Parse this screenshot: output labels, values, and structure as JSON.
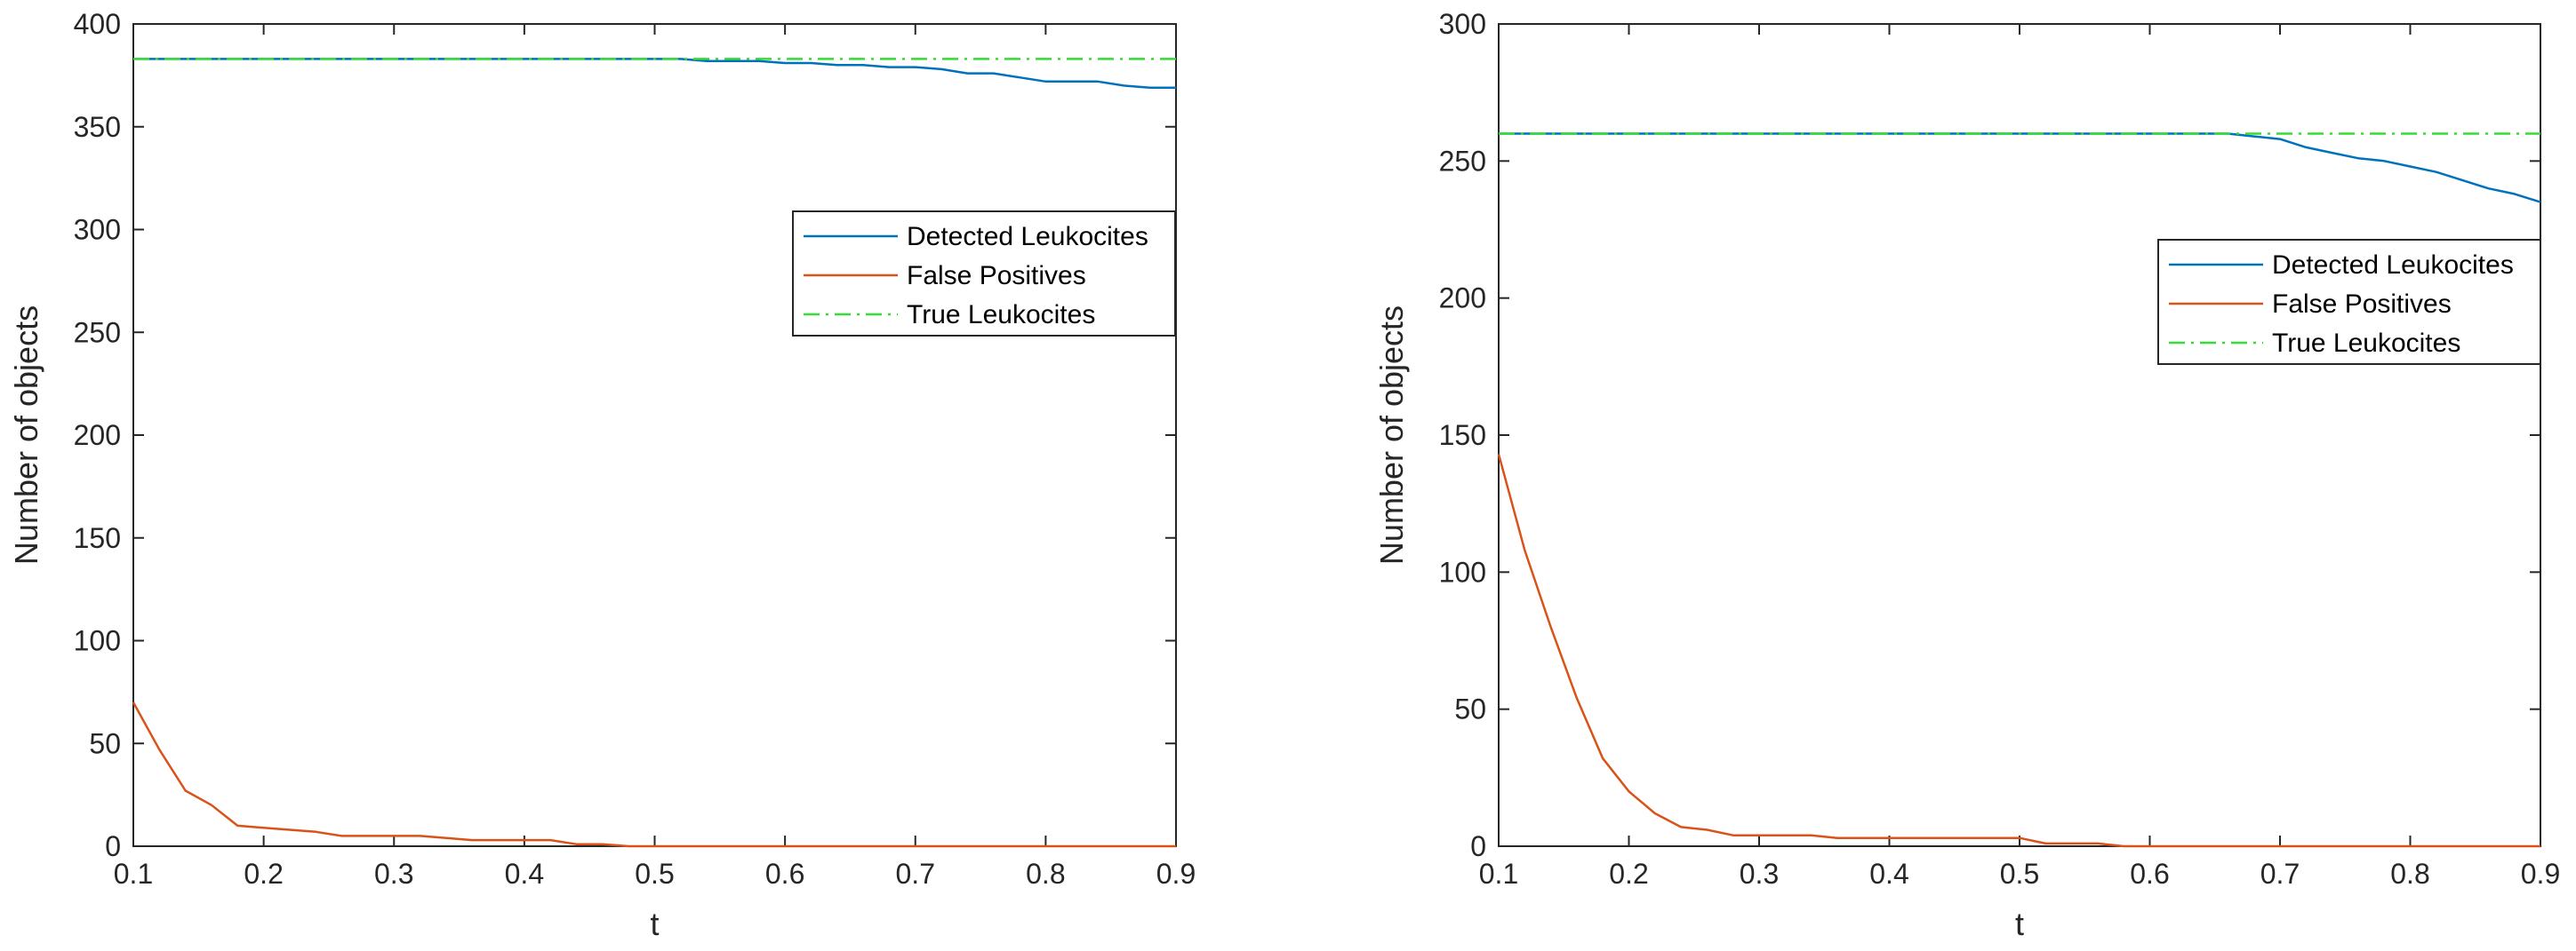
{
  "chart_data": [
    {
      "type": "line",
      "title": "",
      "xlabel": "t",
      "ylabel": "Number of objects",
      "xlim": [
        0.1,
        0.9
      ],
      "ylim": [
        0,
        400
      ],
      "xticks": [
        0.1,
        0.2,
        0.3,
        0.4,
        0.5,
        0.6,
        0.7,
        0.8,
        0.9
      ],
      "yticks": [
        0,
        50,
        100,
        150,
        200,
        250,
        300,
        350,
        400
      ],
      "xtick_labels": [
        "0.1",
        "0.2",
        "0.3",
        "0.4",
        "0.5",
        "0.6",
        "0.7",
        "0.8",
        "0.9"
      ],
      "ytick_labels": [
        "0",
        "50",
        "100",
        "150",
        "200",
        "250",
        "300",
        "350",
        "400"
      ],
      "legend_position": "upper-right",
      "x": [
        0.1,
        0.12,
        0.14,
        0.16,
        0.18,
        0.2,
        0.22,
        0.24,
        0.26,
        0.28,
        0.3,
        0.32,
        0.34,
        0.36,
        0.38,
        0.4,
        0.42,
        0.44,
        0.46,
        0.48,
        0.5,
        0.52,
        0.54,
        0.56,
        0.58,
        0.6,
        0.62,
        0.64,
        0.66,
        0.68,
        0.7,
        0.72,
        0.74,
        0.76,
        0.78,
        0.8,
        0.82,
        0.84,
        0.86,
        0.88,
        0.9
      ],
      "series": [
        {
          "name": "Detected Leukocites",
          "color": "#0072BD",
          "style": "solid",
          "values": [
            383,
            383,
            383,
            383,
            383,
            383,
            383,
            383,
            383,
            383,
            383,
            383,
            383,
            383,
            383,
            383,
            383,
            383,
            383,
            383,
            383,
            383,
            382,
            382,
            382,
            381,
            381,
            380,
            380,
            379,
            379,
            378,
            376,
            376,
            374,
            372,
            372,
            372,
            370,
            369,
            369
          ]
        },
        {
          "name": "False Positives",
          "color": "#D95319",
          "style": "solid",
          "values": [
            70,
            47,
            27,
            20,
            10,
            9,
            8,
            7,
            5,
            5,
            5,
            5,
            4,
            3,
            3,
            3,
            3,
            1,
            1,
            0,
            0,
            0,
            0,
            0,
            0,
            0,
            0,
            0,
            0,
            0,
            0,
            0,
            0,
            0,
            0,
            0,
            0,
            0,
            0,
            0,
            0
          ]
        },
        {
          "name": "True Leukocites",
          "color": "#33DD33",
          "style": "dashdot",
          "values": [
            383,
            383,
            383,
            383,
            383,
            383,
            383,
            383,
            383,
            383,
            383,
            383,
            383,
            383,
            383,
            383,
            383,
            383,
            383,
            383,
            383,
            383,
            383,
            383,
            383,
            383,
            383,
            383,
            383,
            383,
            383,
            383,
            383,
            383,
            383,
            383,
            383,
            383,
            383,
            383,
            383
          ]
        }
      ]
    },
    {
      "type": "line",
      "title": "",
      "xlabel": "t",
      "ylabel": "Number of objects",
      "xlim": [
        0.1,
        0.9
      ],
      "ylim": [
        0,
        300
      ],
      "xticks": [
        0.1,
        0.2,
        0.3,
        0.4,
        0.5,
        0.6,
        0.7,
        0.8,
        0.9
      ],
      "yticks": [
        0,
        50,
        100,
        150,
        200,
        250,
        300
      ],
      "xtick_labels": [
        "0.1",
        "0.2",
        "0.3",
        "0.4",
        "0.5",
        "0.6",
        "0.7",
        "0.8",
        "0.9"
      ],
      "ytick_labels": [
        "0",
        "50",
        "100",
        "150",
        "200",
        "250",
        "300"
      ],
      "legend_position": "upper-right",
      "x": [
        0.1,
        0.12,
        0.14,
        0.16,
        0.18,
        0.2,
        0.22,
        0.24,
        0.26,
        0.28,
        0.3,
        0.32,
        0.34,
        0.36,
        0.38,
        0.4,
        0.42,
        0.44,
        0.46,
        0.48,
        0.5,
        0.52,
        0.54,
        0.56,
        0.58,
        0.6,
        0.62,
        0.64,
        0.66,
        0.68,
        0.7,
        0.72,
        0.74,
        0.76,
        0.78,
        0.8,
        0.82,
        0.84,
        0.86,
        0.88,
        0.9
      ],
      "series": [
        {
          "name": "Detected Leukocites",
          "color": "#0072BD",
          "style": "solid",
          "values": [
            260,
            260,
            260,
            260,
            260,
            260,
            260,
            260,
            260,
            260,
            260,
            260,
            260,
            260,
            260,
            260,
            260,
            260,
            260,
            260,
            260,
            260,
            260,
            260,
            260,
            260,
            260,
            260,
            260,
            259,
            258,
            255,
            253,
            251,
            250,
            248,
            246,
            243,
            240,
            238,
            235
          ]
        },
        {
          "name": "False Positives",
          "color": "#D95319",
          "style": "solid",
          "values": [
            143,
            108,
            80,
            54,
            32,
            20,
            12,
            7,
            6,
            4,
            4,
            4,
            4,
            3,
            3,
            3,
            3,
            3,
            3,
            3,
            3,
            1,
            1,
            1,
            0,
            0,
            0,
            0,
            0,
            0,
            0,
            0,
            0,
            0,
            0,
            0,
            0,
            0,
            0,
            0,
            0
          ]
        },
        {
          "name": "True Leukocites",
          "color": "#33DD33",
          "style": "dashdot",
          "values": [
            260,
            260,
            260,
            260,
            260,
            260,
            260,
            260,
            260,
            260,
            260,
            260,
            260,
            260,
            260,
            260,
            260,
            260,
            260,
            260,
            260,
            260,
            260,
            260,
            260,
            260,
            260,
            260,
            260,
            260,
            260,
            260,
            260,
            260,
            260,
            260,
            260,
            260,
            260,
            260,
            260
          ]
        }
      ]
    }
  ]
}
